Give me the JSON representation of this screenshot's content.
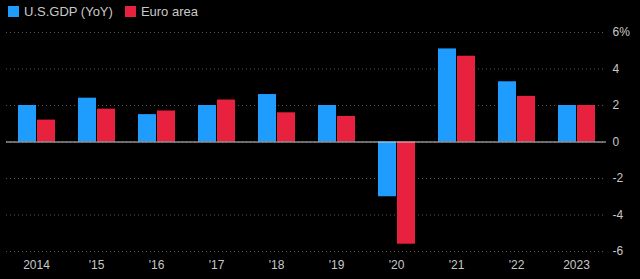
{
  "chart_data": {
    "type": "bar",
    "categories": [
      "2014",
      "'15",
      "'16",
      "'17",
      "'18",
      "'19",
      "'20",
      "'21",
      "'22",
      "2023"
    ],
    "series": [
      {
        "name": "U.S.GDP (YoY)",
        "color": "#1e9dff",
        "values": [
          2.0,
          2.4,
          1.5,
          2.0,
          2.6,
          2.0,
          -3.0,
          5.1,
          3.3,
          2.0
        ]
      },
      {
        "name": "Euro area",
        "color": "#e8213f",
        "values": [
          1.2,
          1.8,
          1.7,
          2.3,
          1.6,
          1.4,
          -5.6,
          4.7,
          2.5,
          2.0
        ]
      }
    ],
    "ylim": [
      -6,
      6
    ],
    "yticks": [
      -6,
      -4,
      -2,
      0,
      2,
      4,
      {
        "value": 6,
        "label": "6%"
      }
    ],
    "grid": true,
    "legend": "top-left"
  }
}
